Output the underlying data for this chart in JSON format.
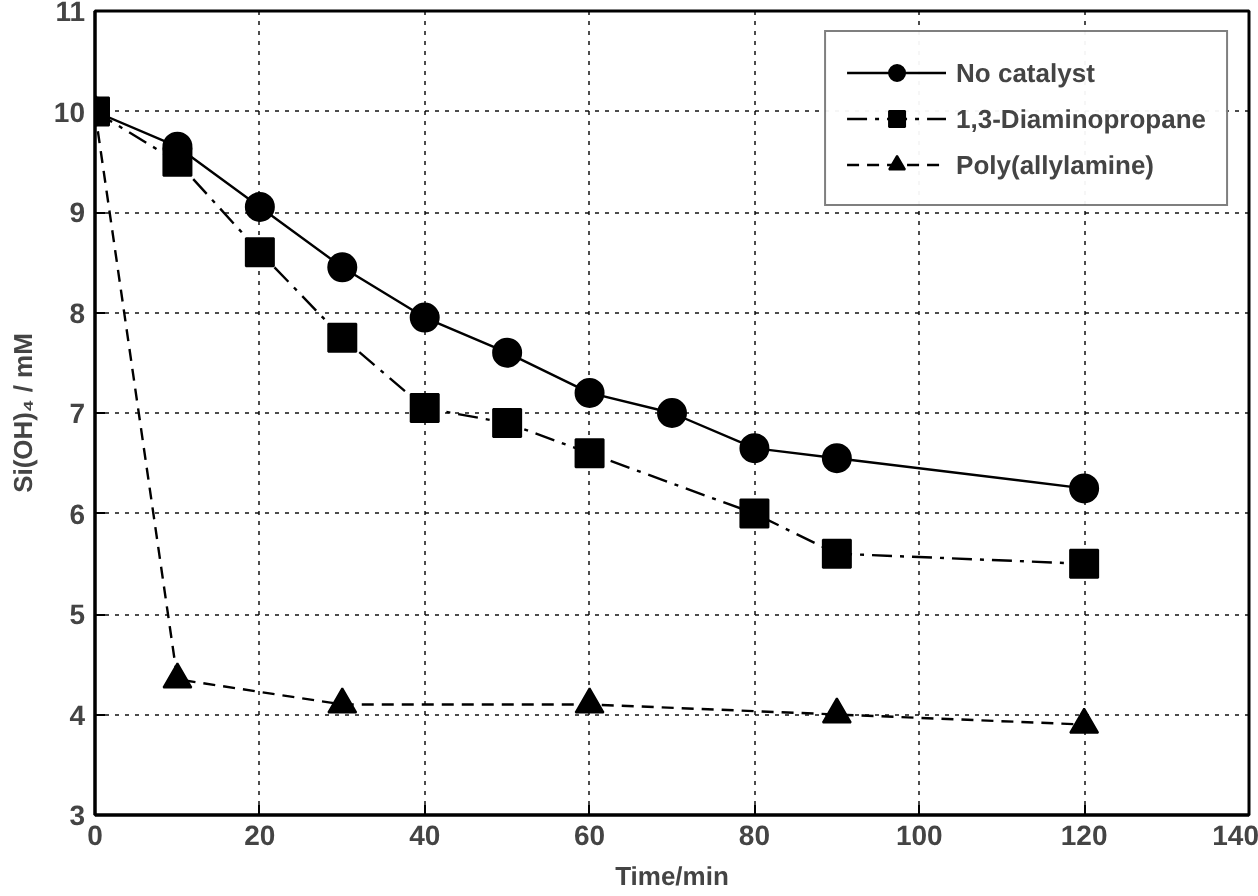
{
  "chart_data": {
    "type": "line",
    "xlabel": "Time/min",
    "ylabel": "Si(OH)₄ / mM",
    "xlim": [
      0,
      140
    ],
    "xticks": [
      0,
      20,
      40,
      60,
      80,
      100,
      120,
      140
    ],
    "ylim": [
      3,
      11
    ],
    "yticks": [
      3,
      4,
      5,
      6,
      7,
      8,
      9,
      10,
      11
    ],
    "grid": true,
    "legend": "top right",
    "series": [
      {
        "name": "No catalyst",
        "color": "#000000",
        "marker": "circle",
        "line_style": "solid",
        "x": [
          0,
          10,
          20,
          30,
          40,
          50,
          60,
          70,
          80,
          90,
          120
        ],
        "values": [
          10,
          9.65,
          9.05,
          8.45,
          7.95,
          7.6,
          7.2,
          7.0,
          6.65,
          6.55,
          6.25
        ]
      },
      {
        "name": "1,3-Diaminopropane",
        "color": "#000000",
        "marker": "square",
        "line_style": "dashdot",
        "x": [
          0,
          10,
          20,
          30,
          40,
          50,
          60,
          80,
          90,
          120
        ],
        "values": [
          10,
          9.5,
          8.6,
          7.75,
          7.05,
          6.9,
          6.6,
          6.0,
          5.6,
          5.5
        ]
      },
      {
        "name": "Poly(allylamine)",
        "color": "#000000",
        "marker": "triangle",
        "line_style": "dashed",
        "x": [
          0,
          10,
          30,
          60,
          90,
          120
        ],
        "values": [
          10,
          4.35,
          4.1,
          4.1,
          4.0,
          3.9
        ]
      }
    ]
  }
}
